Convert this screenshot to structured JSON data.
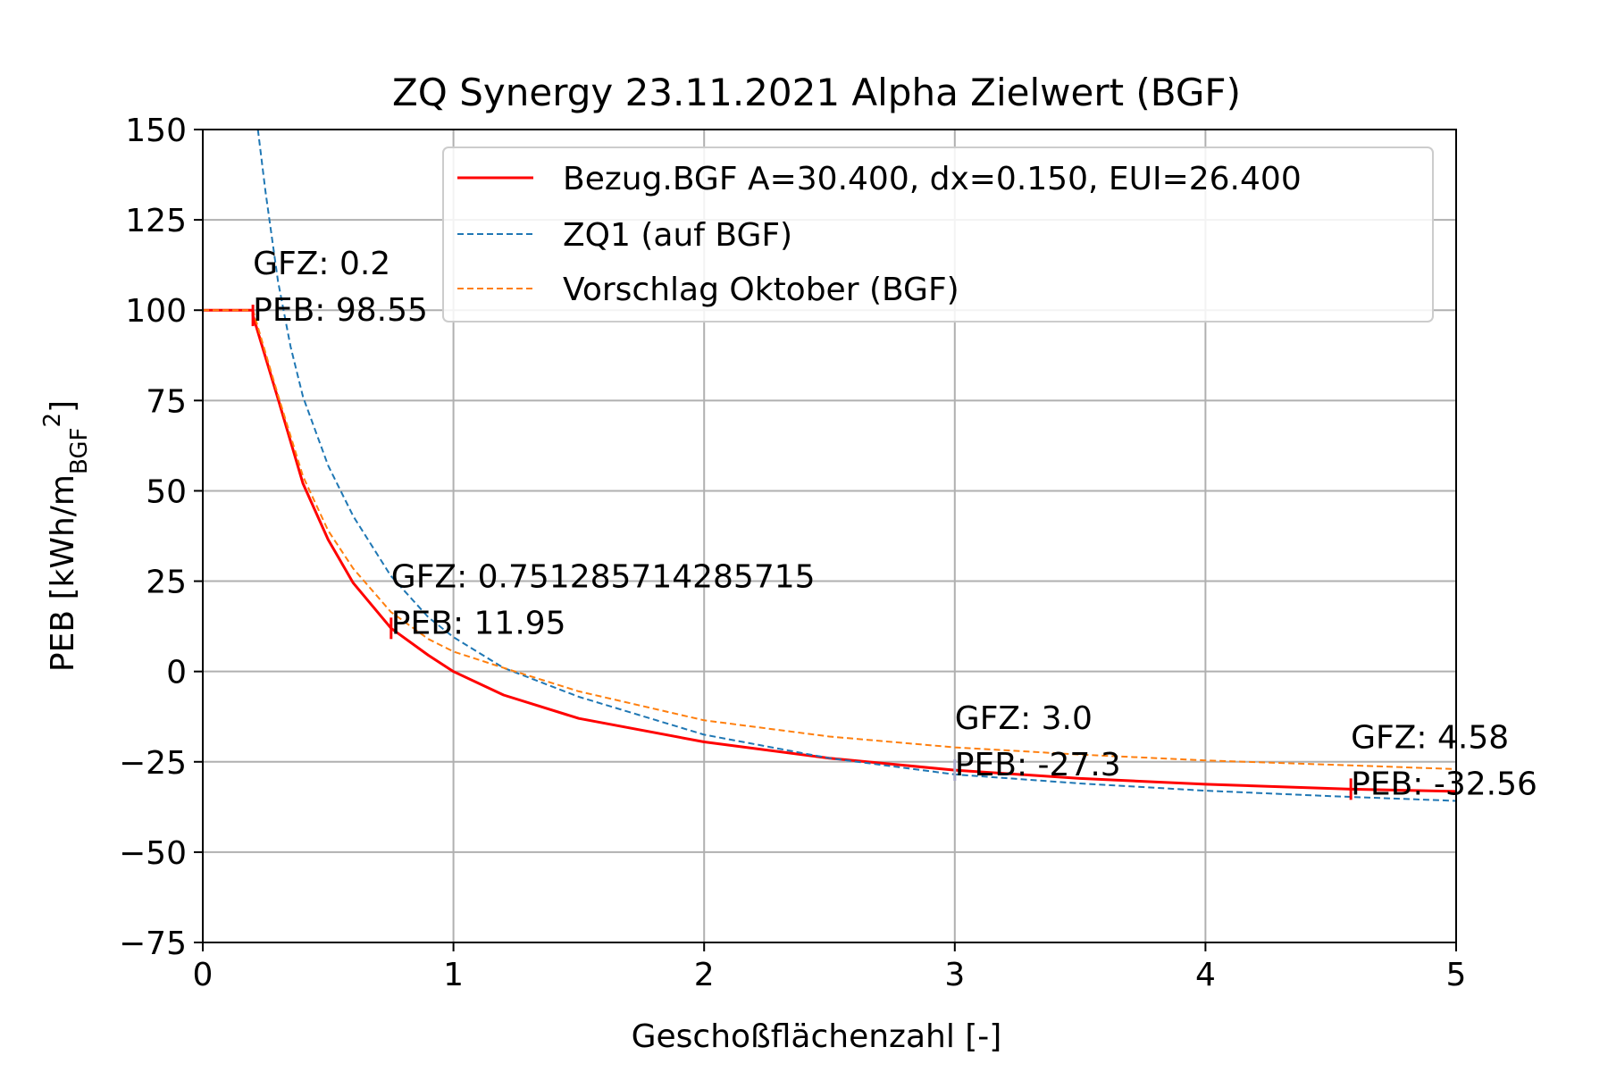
{
  "chart_data": {
    "type": "line",
    "title": "ZQ Synergy 23.11.2021 Alpha Zielwert (BGF)",
    "xlabel": "Geschoßflächenzahl [-]",
    "ylabel": "PEB [kWh/m",
    "ylabel_sub": "BGF",
    "ylabel_sup": "2",
    "ylabel_close": "]",
    "xlim": [
      0,
      5
    ],
    "ylim": [
      -75,
      150
    ],
    "grid": true,
    "legend_position": "top-right",
    "x_ticks": [
      0,
      1,
      2,
      3,
      4,
      5
    ],
    "x_tick_labels": [
      "0",
      "1",
      "2",
      "3",
      "4",
      "5"
    ],
    "y_ticks": [
      -75,
      -50,
      -25,
      0,
      25,
      50,
      75,
      100,
      125,
      150
    ],
    "y_tick_labels": [
      "−75",
      "−50",
      "−25",
      "0",
      "25",
      "50",
      "75",
      "100",
      "125",
      "150"
    ],
    "series": [
      {
        "name": "Bezug.BGF A=30.400, dx=0.150, EUI=26.400",
        "color": "#ff0000",
        "style": "solid",
        "points": [
          [
            0,
            100
          ],
          [
            0.2,
            100
          ],
          [
            0.2,
            98.55
          ],
          [
            0.3,
            75.5
          ],
          [
            0.4,
            52.0
          ],
          [
            0.5,
            36.5
          ],
          [
            0.6,
            24.5
          ],
          [
            0.75128,
            11.95
          ],
          [
            0.9,
            4.5
          ],
          [
            1.0,
            0.0
          ],
          [
            1.2,
            -6.5
          ],
          [
            1.5,
            -13.0
          ],
          [
            2.0,
            -19.5
          ],
          [
            2.5,
            -24.0
          ],
          [
            3.0,
            -27.3
          ],
          [
            3.5,
            -29.6
          ],
          [
            4.0,
            -31.2
          ],
          [
            4.58,
            -32.56
          ],
          [
            5.0,
            -33.2
          ]
        ]
      },
      {
        "name": "ZQ1 (auf BGF)",
        "color": "#1f77b4",
        "style": "dashed",
        "points": [
          [
            0.22,
            150
          ],
          [
            0.25,
            133.0
          ],
          [
            0.3,
            108.0
          ],
          [
            0.35,
            90.0
          ],
          [
            0.4,
            76.0
          ],
          [
            0.5,
            57.0
          ],
          [
            0.6,
            43.0
          ],
          [
            0.75,
            26.5
          ],
          [
            0.9,
            15.0
          ],
          [
            1.0,
            9.5
          ],
          [
            1.2,
            1.0
          ],
          [
            1.5,
            -7.0
          ],
          [
            2.0,
            -17.5
          ],
          [
            2.5,
            -24.0
          ],
          [
            3.0,
            -28.5
          ],
          [
            3.5,
            -31.0
          ],
          [
            4.0,
            -33.0
          ],
          [
            4.5,
            -34.5
          ],
          [
            5.0,
            -35.8
          ]
        ]
      },
      {
        "name": "Vorschlag Oktober (BGF)",
        "color": "#ff7f0e",
        "style": "dashed",
        "points": [
          [
            0,
            100
          ],
          [
            0.2,
            100
          ],
          [
            0.3,
            76.5
          ],
          [
            0.4,
            54.0
          ],
          [
            0.5,
            39.0
          ],
          [
            0.6,
            28.5
          ],
          [
            0.75,
            16.5
          ],
          [
            0.9,
            9.0
          ],
          [
            1.0,
            5.5
          ],
          [
            1.2,
            1.0
          ],
          [
            1.5,
            -5.5
          ],
          [
            2.0,
            -13.5
          ],
          [
            2.5,
            -18.0
          ],
          [
            3.0,
            -21.0
          ],
          [
            3.5,
            -23.0
          ],
          [
            4.0,
            -24.6
          ],
          [
            4.5,
            -25.8
          ],
          [
            5.0,
            -27.0
          ]
        ]
      }
    ],
    "markers": [
      {
        "x": 0.2,
        "y": 98.55,
        "color": "#ff0000"
      },
      {
        "x": 0.751285714285715,
        "y": 11.95,
        "color": "#ff0000"
      },
      {
        "x": 3.0,
        "y": -27.3,
        "color": "#a8a8c8"
      },
      {
        "x": 4.58,
        "y": -32.56,
        "color": "#ff0000"
      }
    ],
    "annotations": [
      {
        "x": 0.2,
        "y": 98.55,
        "line1": "GFZ: 0.2",
        "line2": "PEB: 98.55"
      },
      {
        "x": 0.751285714285715,
        "y": 11.95,
        "line1": "GFZ: 0.751285714285715",
        "line2": "PEB: 11.95"
      },
      {
        "x": 3.0,
        "y": -27.3,
        "line1": "GFZ: 3.0",
        "line2": "PEB: -27.3"
      },
      {
        "x": 4.58,
        "y": -32.56,
        "line1": "GFZ: 4.58",
        "line2": "PEB: -32.56"
      }
    ]
  }
}
